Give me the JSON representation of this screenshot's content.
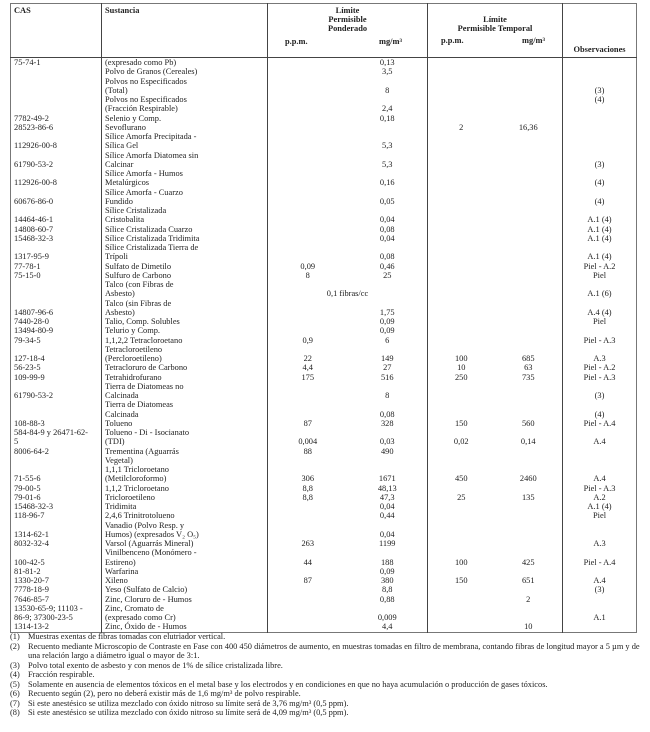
{
  "header": {
    "cas": "CAS",
    "sustancia": "Sustancia",
    "ponderado_title": [
      "Límite",
      "Permisible",
      "Ponderado"
    ],
    "temporal_title": [
      "Límite",
      "Permisible Temporal"
    ],
    "ppm": "p.p.m.",
    "mg": "mg/m³",
    "observaciones": "Observaciones"
  },
  "rows": [
    [
      "75-74-1",
      "(expresado como Pb)",
      "",
      "0,13",
      "",
      "",
      ""
    ],
    [
      "",
      "Polvo de Granos (Cereales)",
      "",
      "3,5",
      "",
      "",
      ""
    ],
    [
      "",
      "Polvos no Especificados",
      "",
      "",
      "",
      "",
      ""
    ],
    [
      "",
      "(Total)",
      "",
      "8",
      "",
      "",
      "(3)"
    ],
    [
      "",
      "Polvos no Especificados",
      "",
      "",
      "",
      "",
      "(4)"
    ],
    [
      "",
      "(Fracción Respirable)",
      "",
      "2,4",
      "",
      "",
      ""
    ],
    [
      "7782-49-2",
      "Selenio y Comp.",
      "",
      "0,18",
      "",
      "",
      ""
    ],
    [
      "28523-86-6",
      "Sevoflurano",
      "",
      "",
      "2",
      "16,36",
      ""
    ],
    [
      "",
      "Sílice Amorfa Precipitada -",
      "",
      "",
      "",
      "",
      ""
    ],
    [
      "112926-00-8",
      "Sílica Gel",
      "",
      "5,3",
      "",
      "",
      ""
    ],
    [
      "",
      "Sílice Amorfa Diatomea sin",
      "",
      "",
      "",
      "",
      ""
    ],
    [
      "61790-53-2",
      "Calcinar",
      "",
      "5,3",
      "",
      "",
      "(3)"
    ],
    [
      "",
      "Sílice Amorfa - Humos",
      "",
      "",
      "",
      "",
      ""
    ],
    [
      "112926-00-8",
      "Metalúrgicos",
      "",
      "0,16",
      "",
      "",
      "(4)"
    ],
    [
      "",
      "Sílice Amorfa - Cuarzo",
      "",
      "",
      "",
      "",
      ""
    ],
    [
      "60676-86-0",
      "Fundido",
      "",
      "0,05",
      "",
      "",
      "(4)"
    ],
    [
      "",
      "Sílice Cristalizada",
      "",
      "",
      "",
      "",
      ""
    ],
    [
      "14464-46-1",
      "Cristobalita",
      "",
      "0,04",
      "",
      "",
      "A.1 (4)"
    ],
    [
      "14808-60-7",
      "Sílice Cristalizada Cuarzo",
      "",
      "0,08",
      "",
      "",
      "A.1 (4)"
    ],
    [
      "15468-32-3",
      "Sílice Cristalizada Tridimita",
      "",
      "0,04",
      "",
      "",
      "A.1 (4)"
    ],
    [
      "",
      "Sílice Cristalizada Tierra de",
      "",
      "",
      "",
      "",
      ""
    ],
    [
      "1317-95-9",
      "Trípoli",
      "",
      "0,08",
      "",
      "",
      "A.1 (4)"
    ],
    [
      "77-78-1",
      "Sulfato de Dimetilo",
      "0,09",
      "0,46",
      "",
      "",
      "Piel - A.2"
    ],
    [
      "75-15-0",
      "Sulfuro de Carbono",
      "8",
      "25",
      "",
      "",
      "Piel"
    ],
    [
      "",
      "Talco (con Fibras de",
      "",
      "",
      "",
      "",
      ""
    ],
    [
      "",
      "Asbesto)",
      "0,1 fibras/cc",
      "",
      "",
      "",
      "A.1 (6)"
    ],
    [
      "",
      "Talco (sin Fibras de",
      "",
      "",
      "",
      "",
      ""
    ],
    [
      "14807-96-6",
      "Asbesto)",
      "",
      "1,75",
      "",
      "",
      "A.4 (4)"
    ],
    [
      "7440-28-0",
      "Talio, Comp. Solubles",
      "",
      "0,09",
      "",
      "",
      "Piel"
    ],
    [
      "13494-80-9",
      "Telurio y Comp.",
      "",
      "0,09",
      "",
      "",
      ""
    ],
    [
      "79-34-5",
      "1,1,2,2 Tetracloroetano",
      "0,9",
      "6",
      "",
      "",
      "Piel - A.3"
    ],
    [
      "",
      "Tetracloroetileno",
      "",
      "",
      "",
      "",
      ""
    ],
    [
      "127-18-4",
      "(Percloroetileno)",
      "22",
      "149",
      "100",
      "685",
      "A.3"
    ],
    [
      "56-23-5",
      "Tetracloruro de Carbono",
      "4,4",
      "27",
      "10",
      "63",
      "Piel - A.2"
    ],
    [
      "109-99-9",
      "Tetrahidrofurano",
      "175",
      "516",
      "250",
      "735",
      "Piel - A.3"
    ],
    [
      "",
      "Tierra de Diatomeas no",
      "",
      "",
      "",
      "",
      ""
    ],
    [
      "61790-53-2",
      "Calcinada",
      "",
      "8",
      "",
      "",
      "(3)"
    ],
    [
      "",
      "Tierra de Diatomeas",
      "",
      "",
      "",
      "",
      ""
    ],
    [
      "",
      "Calcinada",
      "",
      "0,08",
      "",
      "",
      "(4)"
    ],
    [
      "108-88-3",
      "Tolueno",
      "87",
      "328",
      "150",
      "560",
      "Piel - A.4"
    ],
    [
      "584-84-9 y 26471-62-",
      "Tolueno - Di - Isocianato",
      "",
      "",
      "",
      "",
      ""
    ],
    [
      "5",
      "(TDI)",
      "0,004",
      "0,03",
      "0,02",
      "0,14",
      "A.4"
    ],
    [
      "8006-64-2",
      "Trementina (Aguarrás",
      "88",
      "490",
      "",
      "",
      ""
    ],
    [
      "",
      "Vegetal)",
      "",
      "",
      "",
      "",
      ""
    ],
    [
      "",
      "1,1,1 Tricloroetano",
      "",
      "",
      "",
      "",
      ""
    ],
    [
      "71-55-6",
      "(Metilcloroformo)",
      "306",
      "1671",
      "450",
      "2460",
      "A.4"
    ],
    [
      "79-00-5",
      "1,1,2 Tricloroetano",
      "8,8",
      "48,13",
      "",
      "",
      "Piel - A.3"
    ],
    [
      "79-01-6",
      "Tricloroetileno",
      "8,8",
      "47,3",
      "25",
      "135",
      "A.2"
    ],
    [
      "15468-32-3",
      "Tridimita",
      "",
      "0,04",
      "",
      "",
      "A.1 (4)"
    ],
    [
      "118-96-7",
      "2,4,6 Trinitrotolueno",
      "",
      "0,44",
      "",
      "",
      "Piel"
    ],
    [
      "",
      "Vanadio (Polvo Resp. y",
      "",
      "",
      "",
      "",
      ""
    ],
    [
      "1314-62-1",
      "Humos) (expresados V₂ O₅)",
      "",
      "0,04",
      "",
      "",
      ""
    ],
    [
      "8032-32-4",
      "Varsol (Aguarrás Mineral)",
      "263",
      "1199",
      "",
      "",
      "A.3"
    ],
    [
      "",
      "Vinilbenceno (Monómero -",
      "",
      "",
      "",
      "",
      ""
    ],
    [
      "100-42-5",
      "Estireno)",
      "44",
      "188",
      "100",
      "425",
      "Piel - A.4"
    ],
    [
      "81-81-2",
      "Warfarina",
      "",
      "0,09",
      "",
      "",
      ""
    ],
    [
      "1330-20-7",
      "Xileno",
      "87",
      "380",
      "150",
      "651",
      "A.4"
    ],
    [
      "7778-18-9",
      "Yeso (Sulfato de Calcio)",
      "",
      "8,8",
      "",
      "",
      "(3)"
    ],
    [
      "7646-85-7",
      "Zinc, Cloruro de - Humos",
      "",
      "0,88",
      "",
      "2",
      ""
    ],
    [
      "13530-65-9; 11103 -",
      "Zinc, Cromato de",
      "",
      "",
      "",
      "",
      ""
    ],
    [
      "86-9; 37300-23-5",
      "(expresado como Cr)",
      "",
      "0,009",
      "",
      "",
      "A.1"
    ],
    [
      "1314-13-2",
      "Zinc, Óxido de - Humos",
      "",
      "4,4",
      "",
      "10",
      ""
    ]
  ],
  "notes": [
    {
      "num": "(1)",
      "text": "Muestras exentas de fibras tomadas con elutriador vertical."
    },
    {
      "num": "(2)",
      "text": "Recuento mediante Microscopio de Contraste en Fase con 400 450 diámetros de aumento, en muestras tomadas en filtro de membrana, contando fibras de longitud mayor a 5 µm y de una relación largo a diámetro igual o mayor de 3:1."
    },
    {
      "num": "(3)",
      "text": "Polvo total exento de asbesto y con menos de 1% de sílice cristalizada libre."
    },
    {
      "num": "(4)",
      "text": "Fracción respirable."
    },
    {
      "num": "(5)",
      "text": "Solamente en ausencia de elementos tóxicos en el metal base y los electrodos y en condiciones en que no haya acumulación o producción de gases tóxicos."
    },
    {
      "num": "(6)",
      "text": "Recuento según (2), pero no deberá existir más de 1,6 mg/m³ de polvo respirable."
    },
    {
      "num": "(7)",
      "text": "Si este anestésico se utiliza mezclado con óxido nitroso su límite será de 3,76 mg/m³ (0,5 ppm)."
    },
    {
      "num": "(8)",
      "text": "Si este anestésico se utiliza mezclado con óxido nitroso su límite será de 4,09 mg/m³ (0,5 ppm)."
    }
  ]
}
